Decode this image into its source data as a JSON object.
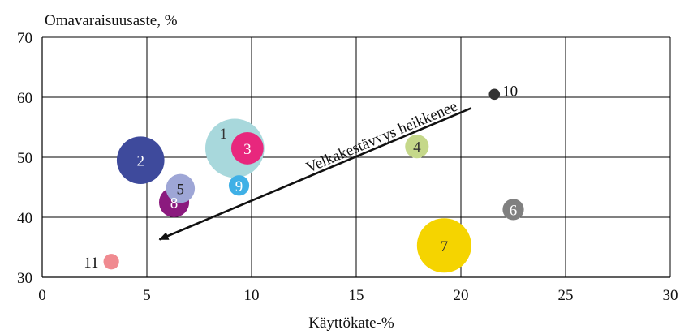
{
  "chart_data": {
    "type": "scatter",
    "subtype": "bubble",
    "title": "",
    "xlabel": "Käyttökate-%",
    "ylabel": "Omavaraisuusaste, %",
    "xlim": [
      0,
      30
    ],
    "ylim": [
      30,
      70
    ],
    "xticks": [
      0,
      5,
      10,
      15,
      20,
      25,
      30
    ],
    "yticks": [
      30,
      40,
      50,
      60,
      70
    ],
    "grid": true,
    "legend": "none",
    "points": [
      {
        "label": "1",
        "x": 9.2,
        "y": 51.5,
        "size": 10.0,
        "color": "#a8d8dc",
        "label_color": "#333333",
        "label_pos": "upper-left"
      },
      {
        "label": "2",
        "x": 4.7,
        "y": 49.5,
        "size": 6.5,
        "color": "#3e4a9c",
        "label_color": "#ffffff",
        "label_pos": "center"
      },
      {
        "label": "3",
        "x": 9.8,
        "y": 51.5,
        "size": 3.0,
        "color": "#e8277d",
        "label_color": "#ffffff",
        "label_pos": "center"
      },
      {
        "label": "4",
        "x": 17.9,
        "y": 51.8,
        "size": 1.6,
        "color": "#c5d88a",
        "label_color": "#333333",
        "label_pos": "center"
      },
      {
        "label": "5",
        "x": 6.6,
        "y": 44.8,
        "size": 2.4,
        "color": "#9ea6d6",
        "label_color": "#222222",
        "label_pos": "center"
      },
      {
        "label": "6",
        "x": 22.5,
        "y": 41.3,
        "size": 1.3,
        "color": "#808080",
        "label_color": "#ffffff",
        "label_pos": "center"
      },
      {
        "label": "7",
        "x": 19.2,
        "y": 35.3,
        "size": 8.5,
        "color": "#f5d400",
        "label_color": "#333333",
        "label_pos": "center"
      },
      {
        "label": "8",
        "x": 6.3,
        "y": 42.5,
        "size": 2.6,
        "color": "#8b1a7e",
        "label_color": "#ffffff",
        "label_pos": "center"
      },
      {
        "label": "9",
        "x": 9.4,
        "y": 45.3,
        "size": 1.2,
        "color": "#3fb0e6",
        "label_color": "#ffffff",
        "label_pos": "center"
      },
      {
        "label": "10",
        "x": 21.6,
        "y": 60.5,
        "size": 0.35,
        "color": "#333333",
        "label_color": "#111111",
        "label_pos": "right"
      },
      {
        "label": "11",
        "x": 3.3,
        "y": 32.6,
        "size": 0.7,
        "color": "#f08a90",
        "label_color": "#111111",
        "label_pos": "left"
      }
    ],
    "annotations": [
      {
        "text": "Velkakestävyys heikkenee",
        "arrow_from": [
          20.5,
          58.2
        ],
        "arrow_to": [
          5.6,
          36.3
        ]
      }
    ]
  }
}
